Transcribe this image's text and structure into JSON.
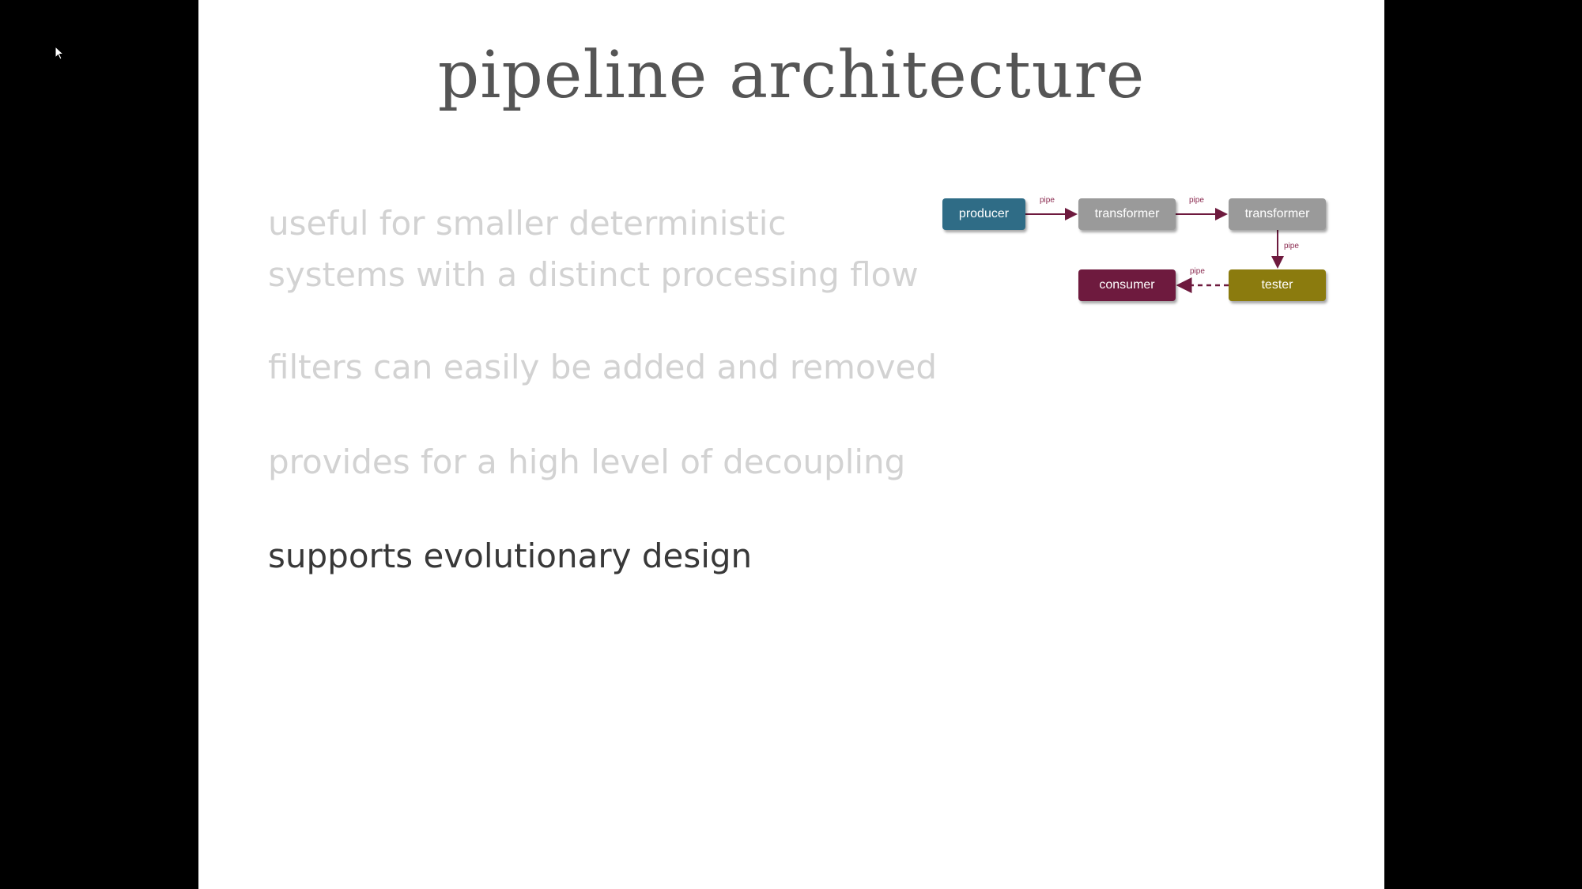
{
  "slide": {
    "title": "pipeline architecture",
    "bullets": [
      "useful for smaller deterministic\nsystems with a distinct processing flow",
      "filters can easily be added and removed",
      "provides for a high level of decoupling",
      "supports evolutionary design"
    ]
  },
  "diagram": {
    "nodes": {
      "producer": "producer",
      "transformer_1": "transformer",
      "transformer_2": "transformer",
      "tester": "tester",
      "consumer": "consumer"
    },
    "pipe_labels": [
      "pipe",
      "pipe",
      "pipe",
      "pipe"
    ]
  },
  "colors": {
    "background": "#000000",
    "slide": "#ffffff",
    "title": "#555555",
    "bullet_faded": "#d2d2d2",
    "bullet_active": "#383838",
    "producer": "#2f6c86",
    "transformer": "#9a9a9a",
    "tester": "#8b7b0e",
    "consumer": "#6e1a3e",
    "pipe": "#6e1a3e"
  }
}
